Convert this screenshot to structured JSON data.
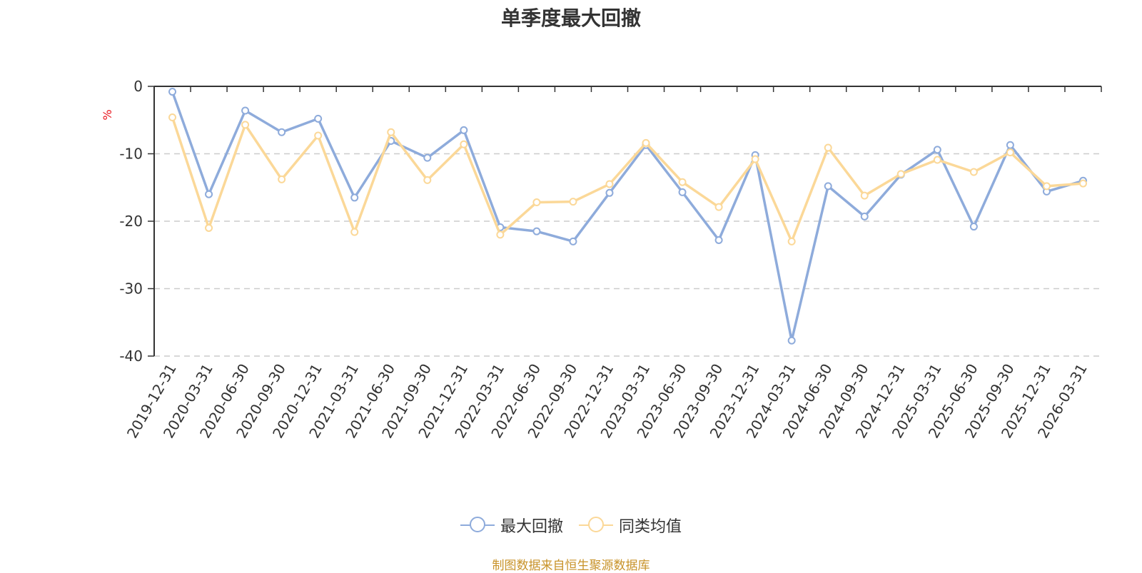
{
  "chart_data": {
    "type": "line",
    "title": "单季度最大回撤",
    "ylabel": "%",
    "ylim": [
      -40,
      0
    ],
    "yticks": [
      0,
      -10,
      -20,
      -30,
      -40
    ],
    "grid": true,
    "legend_position": "bottom",
    "categories": [
      "2019-12-31",
      "2020-03-31",
      "2020-06-30",
      "2020-09-30",
      "2020-12-31",
      "2021-03-31",
      "2021-06-30",
      "2021-09-30",
      "2021-12-31",
      "2022-03-31",
      "2022-06-30",
      "2022-09-30",
      "2022-12-31",
      "2023-03-31",
      "2023-06-30",
      "2023-09-30",
      "2023-12-31",
      "2024-03-31",
      "2024-06-30",
      "2024-09-30",
      "2024-12-31",
      "2025-03-31",
      "2025-06-30",
      "2025-09-30",
      "2025-12-31",
      "2026-03-31"
    ],
    "series": [
      {
        "name": "最大回撤",
        "color": "#8eabdb",
        "values": [
          -0.8,
          -16.0,
          -3.6,
          -6.8,
          -4.8,
          -16.5,
          -8.1,
          -10.6,
          -6.5,
          -20.9,
          -21.5,
          -23.0,
          -15.8,
          -8.7,
          -15.7,
          -22.8,
          -10.2,
          -37.7,
          -14.8,
          -19.3,
          -13.1,
          -9.4,
          -20.8,
          -8.7,
          -15.6,
          -14.0
        ]
      },
      {
        "name": "同类均值",
        "color": "#fbd898",
        "values": [
          -4.6,
          -21.0,
          -5.7,
          -13.8,
          -7.3,
          -21.6,
          -6.8,
          -13.9,
          -8.6,
          -22.0,
          -17.2,
          -17.1,
          -14.5,
          -8.4,
          -14.2,
          -17.9,
          -10.8,
          -23.0,
          -9.1,
          -16.2,
          -13.0,
          -10.9,
          -12.7,
          -9.8,
          -14.8,
          -14.4
        ]
      }
    ]
  },
  "source": "制图数据来自恒生聚源数据库"
}
